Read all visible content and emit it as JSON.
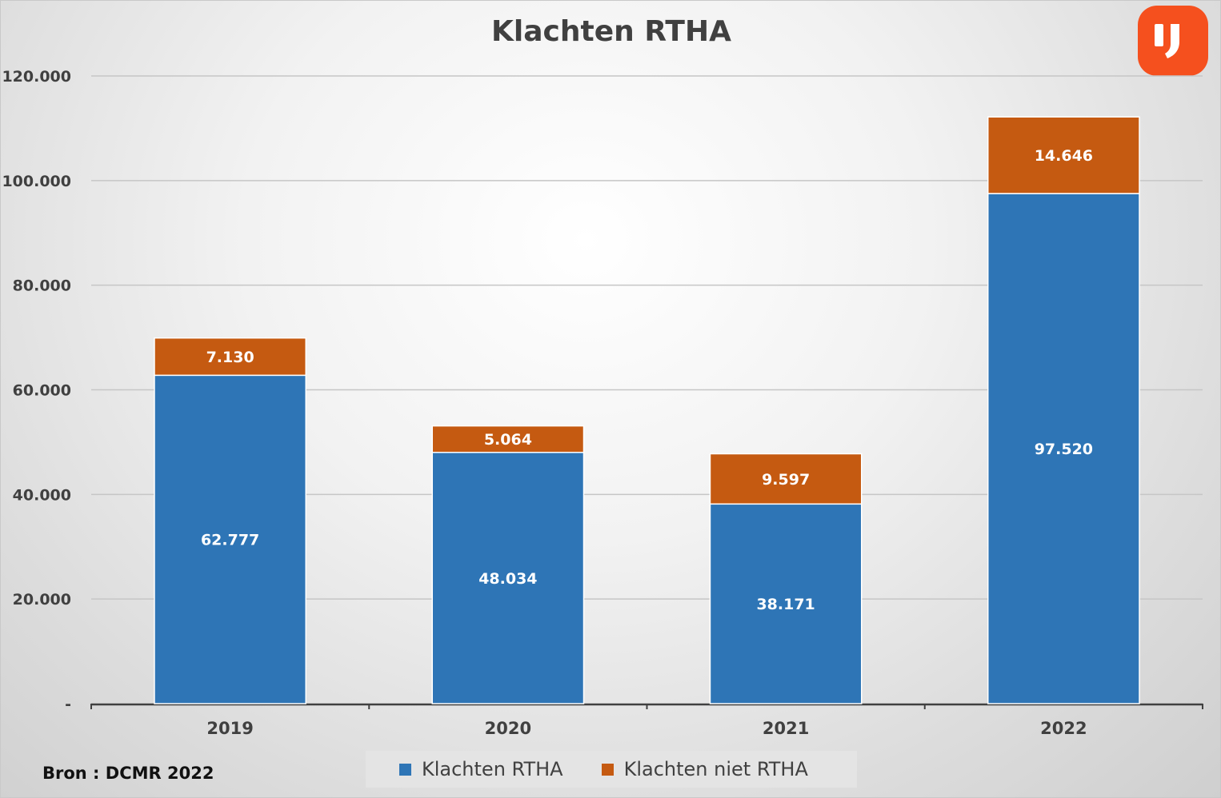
{
  "colors": {
    "klachten_rtha": "#2e75b6",
    "klachten_niet_rtha": "#c55a11",
    "logo_bg": "#f5501e"
  },
  "logo": {
    "icon": "ij-logo-icon"
  },
  "source": "Bron : DCMR 2022",
  "chart_data": {
    "type": "bar",
    "stacked": true,
    "title": "Klachten RTHA",
    "xlabel": "",
    "ylabel": "",
    "categories": [
      "2019",
      "2020",
      "2021",
      "2022"
    ],
    "series": [
      {
        "name": "Klachten RTHA",
        "values": [
          62777,
          48034,
          38171,
          97520
        ],
        "labels": [
          "62.777",
          "48.034",
          "38.171",
          "97.520"
        ]
      },
      {
        "name": "Klachten niet RTHA",
        "values": [
          7130,
          5064,
          9597,
          14646
        ],
        "labels": [
          "7.130",
          "5.064",
          "9.597",
          "14.646"
        ]
      }
    ],
    "ylim": [
      0,
      120000
    ],
    "yticks": [
      0,
      20000,
      40000,
      60000,
      80000,
      100000,
      120000
    ],
    "ytick_labels": [
      "-",
      "20.000",
      "40.000",
      "60.000",
      "80.000",
      "100.000",
      "120.000"
    ],
    "grid": true,
    "legend": "bottom"
  }
}
